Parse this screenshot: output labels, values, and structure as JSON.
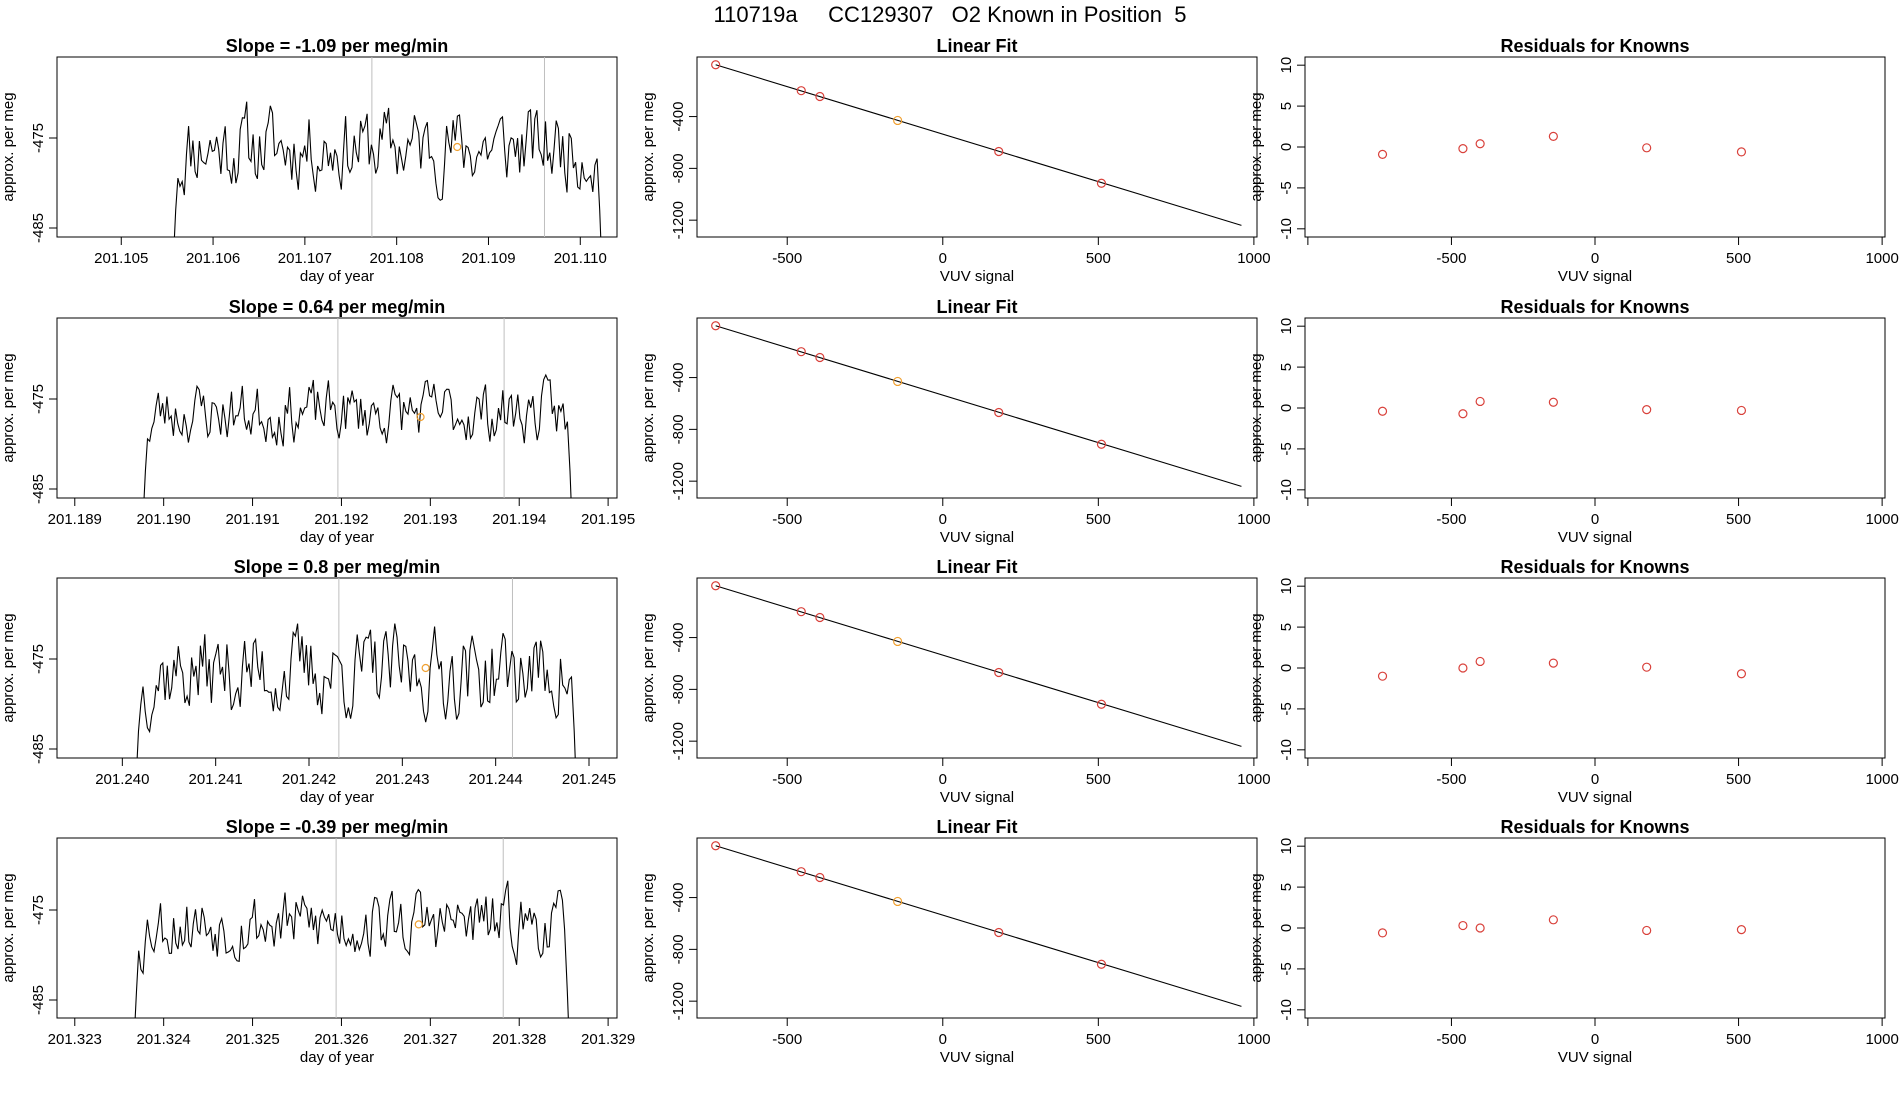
{
  "page": {
    "title": "110719a     CC129307   O2 Known in Position  5"
  },
  "colors": {
    "trace": "#000000",
    "vline": "#bebebe",
    "known_point": "#d9413b",
    "unknown_point": "#f0a030",
    "fit_line": "#000000"
  },
  "chart_data": [
    {
      "type": "line",
      "panel": "timeseries",
      "title": "Slope =  -1.09  per meg/min",
      "xlabel": "day of year",
      "ylabel": "approx. per meg",
      "xlim": [
        201.1043,
        201.1104
      ],
      "ylim": [
        -486.0,
        -466.0
      ],
      "xticks": [
        201.105,
        201.106,
        201.107,
        201.108,
        201.109,
        201.11
      ],
      "xticklabels": [
        "201.105",
        "201.106",
        "201.107",
        "201.108",
        "201.109",
        "201.110"
      ],
      "yticks": [
        -475,
        -485
      ],
      "yticklabels": [
        "-475",
        "-485"
      ],
      "vlines": [
        201.10773,
        201.10961
      ],
      "highlight": {
        "x": 201.10866,
        "y": -476.0
      },
      "trace": {
        "x_start": 201.10557,
        "x_end": 201.11023,
        "start_y": -486.0,
        "base": -476.0,
        "amp": 2.4,
        "end_y": -486.0,
        "seed": 11
      }
    },
    {
      "type": "line",
      "panel": "timeseries",
      "title": "Slope =  0.64  per meg/min",
      "xlabel": "day of year",
      "ylabel": "approx. per meg",
      "xlim": [
        201.1888,
        201.1951
      ],
      "ylim": [
        -486.0,
        -466.0
      ],
      "xticks": [
        201.189,
        201.19,
        201.191,
        201.192,
        201.193,
        201.194,
        201.195
      ],
      "xticklabels": [
        "201.189",
        "201.190",
        "201.191",
        "201.192",
        "201.193",
        "201.194",
        "201.195"
      ],
      "yticks": [
        -475,
        -485
      ],
      "yticklabels": [
        "-475",
        "-485"
      ],
      "vlines": [
        201.19196,
        201.19383
      ],
      "highlight": {
        "x": 201.19289,
        "y": -477.0
      },
      "trace": {
        "x_start": 201.18977,
        "x_end": 201.19459,
        "start_y": -486.0,
        "base": -476.5,
        "amp": 1.8,
        "end_y": -486.0,
        "seed": 23
      }
    },
    {
      "type": "line",
      "panel": "timeseries",
      "title": "Slope =  0.8  per meg/min",
      "xlabel": "day of year",
      "ylabel": "approx. per meg",
      "xlim": [
        201.2393,
        201.2453
      ],
      "ylim": [
        -486.0,
        -466.0
      ],
      "xticks": [
        201.24,
        201.241,
        201.242,
        201.243,
        201.244,
        201.245
      ],
      "xticklabels": [
        "201.240",
        "201.241",
        "201.242",
        "201.243",
        "201.244",
        "201.245"
      ],
      "yticks": [
        -475,
        -485
      ],
      "yticklabels": [
        "-475",
        "-485"
      ],
      "vlines": [
        201.24232,
        201.24418
      ],
      "highlight": {
        "x": 201.24325,
        "y": -476.0
      },
      "trace": {
        "x_start": 201.24015,
        "x_end": 201.24486,
        "start_y": -486.0,
        "base": -476.5,
        "amp": 2.6,
        "end_y": -486.0,
        "seed": 37
      }
    },
    {
      "type": "line",
      "panel": "timeseries",
      "title": "Slope =  -0.39  per meg/min",
      "xlabel": "day of year",
      "ylabel": "approx. per meg",
      "xlim": [
        201.3228,
        201.3291
      ],
      "ylim": [
        -487.0,
        -467.0
      ],
      "xticks": [
        201.323,
        201.324,
        201.325,
        201.326,
        201.327,
        201.328,
        201.329
      ],
      "xticklabels": [
        "201.323",
        "201.324",
        "201.325",
        "201.326",
        "201.327",
        "201.328",
        "201.329"
      ],
      "yticks": [
        -475,
        -485
      ],
      "yticklabels": [
        "-475",
        "-485"
      ],
      "vlines": [
        201.32594,
        201.32782
      ],
      "highlight": {
        "x": 201.32687,
        "y": -476.6
      },
      "trace": {
        "x_start": 201.32367,
        "x_end": 201.32856,
        "start_y": -487.0,
        "base": -476.5,
        "amp": 2.0,
        "end_y": -487.0,
        "seed": 53
      }
    },
    {
      "type": "scatter",
      "panel": "linearfit",
      "title": "Linear Fit",
      "xlabel": "VUV signal",
      "ylabel": "approx. per meg",
      "xlim": [
        -790,
        1010
      ],
      "ylim": [
        -1330,
        60
      ],
      "xticks": [
        -500,
        0,
        500,
        1000
      ],
      "xticklabels": [
        "-500",
        "0",
        "500",
        "1000"
      ],
      "yticks": [
        -400,
        -800,
        -1200
      ],
      "yticklabels": [
        "-400",
        "-800",
        "-1200"
      ],
      "line": [
        [
          -730,
          0
        ],
        [
          960,
          -1240
        ]
      ],
      "points": [
        {
          "x": -730,
          "y": 0,
          "kind": "known"
        },
        {
          "x": -455,
          "y": -200,
          "kind": "known"
        },
        {
          "x": -395,
          "y": -245,
          "kind": "known"
        },
        {
          "x": -145,
          "y": -430,
          "kind": "unknown"
        },
        {
          "x": 180,
          "y": -670,
          "kind": "known"
        },
        {
          "x": 510,
          "y": -915,
          "kind": "known"
        }
      ]
    },
    {
      "type": "scatter",
      "panel": "linearfit",
      "title": "Linear Fit",
      "xlabel": "VUV signal",
      "ylabel": "approx. per meg",
      "xlim": [
        -790,
        1010
      ],
      "ylim": [
        -1330,
        60
      ],
      "xticks": [
        -500,
        0,
        500,
        1000
      ],
      "xticklabels": [
        "-500",
        "0",
        "500",
        "1000"
      ],
      "yticks": [
        -400,
        -800,
        -1200
      ],
      "yticklabels": [
        "-400",
        "-800",
        "-1200"
      ],
      "line": [
        [
          -730,
          0
        ],
        [
          960,
          -1240
        ]
      ],
      "points": [
        {
          "x": -730,
          "y": 0,
          "kind": "known"
        },
        {
          "x": -455,
          "y": -200,
          "kind": "known"
        },
        {
          "x": -395,
          "y": -245,
          "kind": "known"
        },
        {
          "x": -145,
          "y": -430,
          "kind": "unknown"
        },
        {
          "x": 180,
          "y": -670,
          "kind": "known"
        },
        {
          "x": 510,
          "y": -915,
          "kind": "known"
        }
      ]
    },
    {
      "type": "scatter",
      "panel": "linearfit",
      "title": "Linear Fit",
      "xlabel": "VUV signal",
      "ylabel": "approx. per meg",
      "xlim": [
        -790,
        1010
      ],
      "ylim": [
        -1330,
        60
      ],
      "xticks": [
        -500,
        0,
        500,
        1000
      ],
      "xticklabels": [
        "-500",
        "0",
        "500",
        "1000"
      ],
      "yticks": [
        -400,
        -800,
        -1200
      ],
      "yticklabels": [
        "-400",
        "-800",
        "-1200"
      ],
      "line": [
        [
          -730,
          0
        ],
        [
          960,
          -1240
        ]
      ],
      "points": [
        {
          "x": -730,
          "y": 0,
          "kind": "known"
        },
        {
          "x": -455,
          "y": -200,
          "kind": "known"
        },
        {
          "x": -395,
          "y": -245,
          "kind": "known"
        },
        {
          "x": -145,
          "y": -430,
          "kind": "unknown"
        },
        {
          "x": 180,
          "y": -670,
          "kind": "known"
        },
        {
          "x": 510,
          "y": -915,
          "kind": "known"
        }
      ]
    },
    {
      "type": "scatter",
      "panel": "linearfit",
      "title": "Linear Fit",
      "xlabel": "VUV signal",
      "ylabel": "approx. per meg",
      "xlim": [
        -790,
        1010
      ],
      "ylim": [
        -1330,
        60
      ],
      "xticks": [
        -500,
        0,
        500,
        1000
      ],
      "xticklabels": [
        "-500",
        "0",
        "500",
        "1000"
      ],
      "yticks": [
        -400,
        -800,
        -1200
      ],
      "yticklabels": [
        "-400",
        "-800",
        "-1200"
      ],
      "line": [
        [
          -730,
          0
        ],
        [
          960,
          -1240
        ]
      ],
      "points": [
        {
          "x": -730,
          "y": 0,
          "kind": "known"
        },
        {
          "x": -455,
          "y": -200,
          "kind": "known"
        },
        {
          "x": -395,
          "y": -245,
          "kind": "known"
        },
        {
          "x": -145,
          "y": -430,
          "kind": "unknown"
        },
        {
          "x": 180,
          "y": -670,
          "kind": "known"
        },
        {
          "x": 510,
          "y": -915,
          "kind": "known"
        }
      ]
    },
    {
      "type": "scatter",
      "panel": "residuals",
      "title": "Residuals for Knowns",
      "xlabel": "VUV signal",
      "ylabel": "approx. per meg",
      "xlim": [
        -1010,
        1010
      ],
      "ylim": [
        -11,
        11
      ],
      "xticks": [
        -1000,
        -500,
        0,
        500,
        1000
      ],
      "xticklabels": [
        "",
        "-500",
        "0",
        "500",
        "1000"
      ],
      "yticks": [
        10,
        5,
        0,
        -5,
        -10
      ],
      "yticklabels": [
        "10",
        "5",
        "0",
        "-5",
        "-10"
      ],
      "points": [
        {
          "x": -740,
          "y": -0.9
        },
        {
          "x": -460,
          "y": -0.2
        },
        {
          "x": -400,
          "y": 0.4
        },
        {
          "x": -145,
          "y": 1.3
        },
        {
          "x": 180,
          "y": -0.1
        },
        {
          "x": 510,
          "y": -0.6
        }
      ]
    },
    {
      "type": "scatter",
      "panel": "residuals",
      "title": "Residuals for Knowns",
      "xlabel": "VUV signal",
      "ylabel": "approx. per meg",
      "xlim": [
        -1010,
        1010
      ],
      "ylim": [
        -11,
        11
      ],
      "xticks": [
        -1000,
        -500,
        0,
        500,
        1000
      ],
      "xticklabels": [
        "",
        "-500",
        "0",
        "500",
        "1000"
      ],
      "yticks": [
        10,
        5,
        0,
        -5,
        -10
      ],
      "yticklabels": [
        "10",
        "5",
        "0",
        "-5",
        "-10"
      ],
      "points": [
        {
          "x": -740,
          "y": -0.4
        },
        {
          "x": -460,
          "y": -0.7
        },
        {
          "x": -400,
          "y": 0.8
        },
        {
          "x": -145,
          "y": 0.7
        },
        {
          "x": 180,
          "y": -0.2
        },
        {
          "x": 510,
          "y": -0.3
        }
      ]
    },
    {
      "type": "scatter",
      "panel": "residuals",
      "title": "Residuals for Knowns",
      "xlabel": "VUV signal",
      "ylabel": "approx. per meg",
      "xlim": [
        -1010,
        1010
      ],
      "ylim": [
        -11,
        11
      ],
      "xticks": [
        -1000,
        -500,
        0,
        500,
        1000
      ],
      "xticklabels": [
        "",
        "-500",
        "0",
        "500",
        "1000"
      ],
      "yticks": [
        10,
        5,
        0,
        -5,
        -10
      ],
      "yticklabels": [
        "10",
        "5",
        "0",
        "-5",
        "-10"
      ],
      "points": [
        {
          "x": -740,
          "y": -1.0
        },
        {
          "x": -460,
          "y": 0.0
        },
        {
          "x": -400,
          "y": 0.8
        },
        {
          "x": -145,
          "y": 0.6
        },
        {
          "x": 180,
          "y": 0.1
        },
        {
          "x": 510,
          "y": -0.7
        }
      ]
    },
    {
      "type": "scatter",
      "panel": "residuals",
      "title": "Residuals for Knowns",
      "xlabel": "VUV signal",
      "ylabel": "approx. per meg",
      "xlim": [
        -1010,
        1010
      ],
      "ylim": [
        -11,
        11
      ],
      "xticks": [
        -1000,
        -500,
        0,
        500,
        1000
      ],
      "xticklabels": [
        "",
        "-500",
        "0",
        "500",
        "1000"
      ],
      "yticks": [
        10,
        5,
        0,
        -5,
        -10
      ],
      "yticklabels": [
        "10",
        "5",
        "0",
        "-5",
        "-10"
      ],
      "points": [
        {
          "x": -740,
          "y": -0.6
        },
        {
          "x": -460,
          "y": 0.3
        },
        {
          "x": -400,
          "y": 0.0
        },
        {
          "x": -145,
          "y": 1.0
        },
        {
          "x": 180,
          "y": -0.3
        },
        {
          "x": 510,
          "y": -0.2
        }
      ]
    }
  ]
}
